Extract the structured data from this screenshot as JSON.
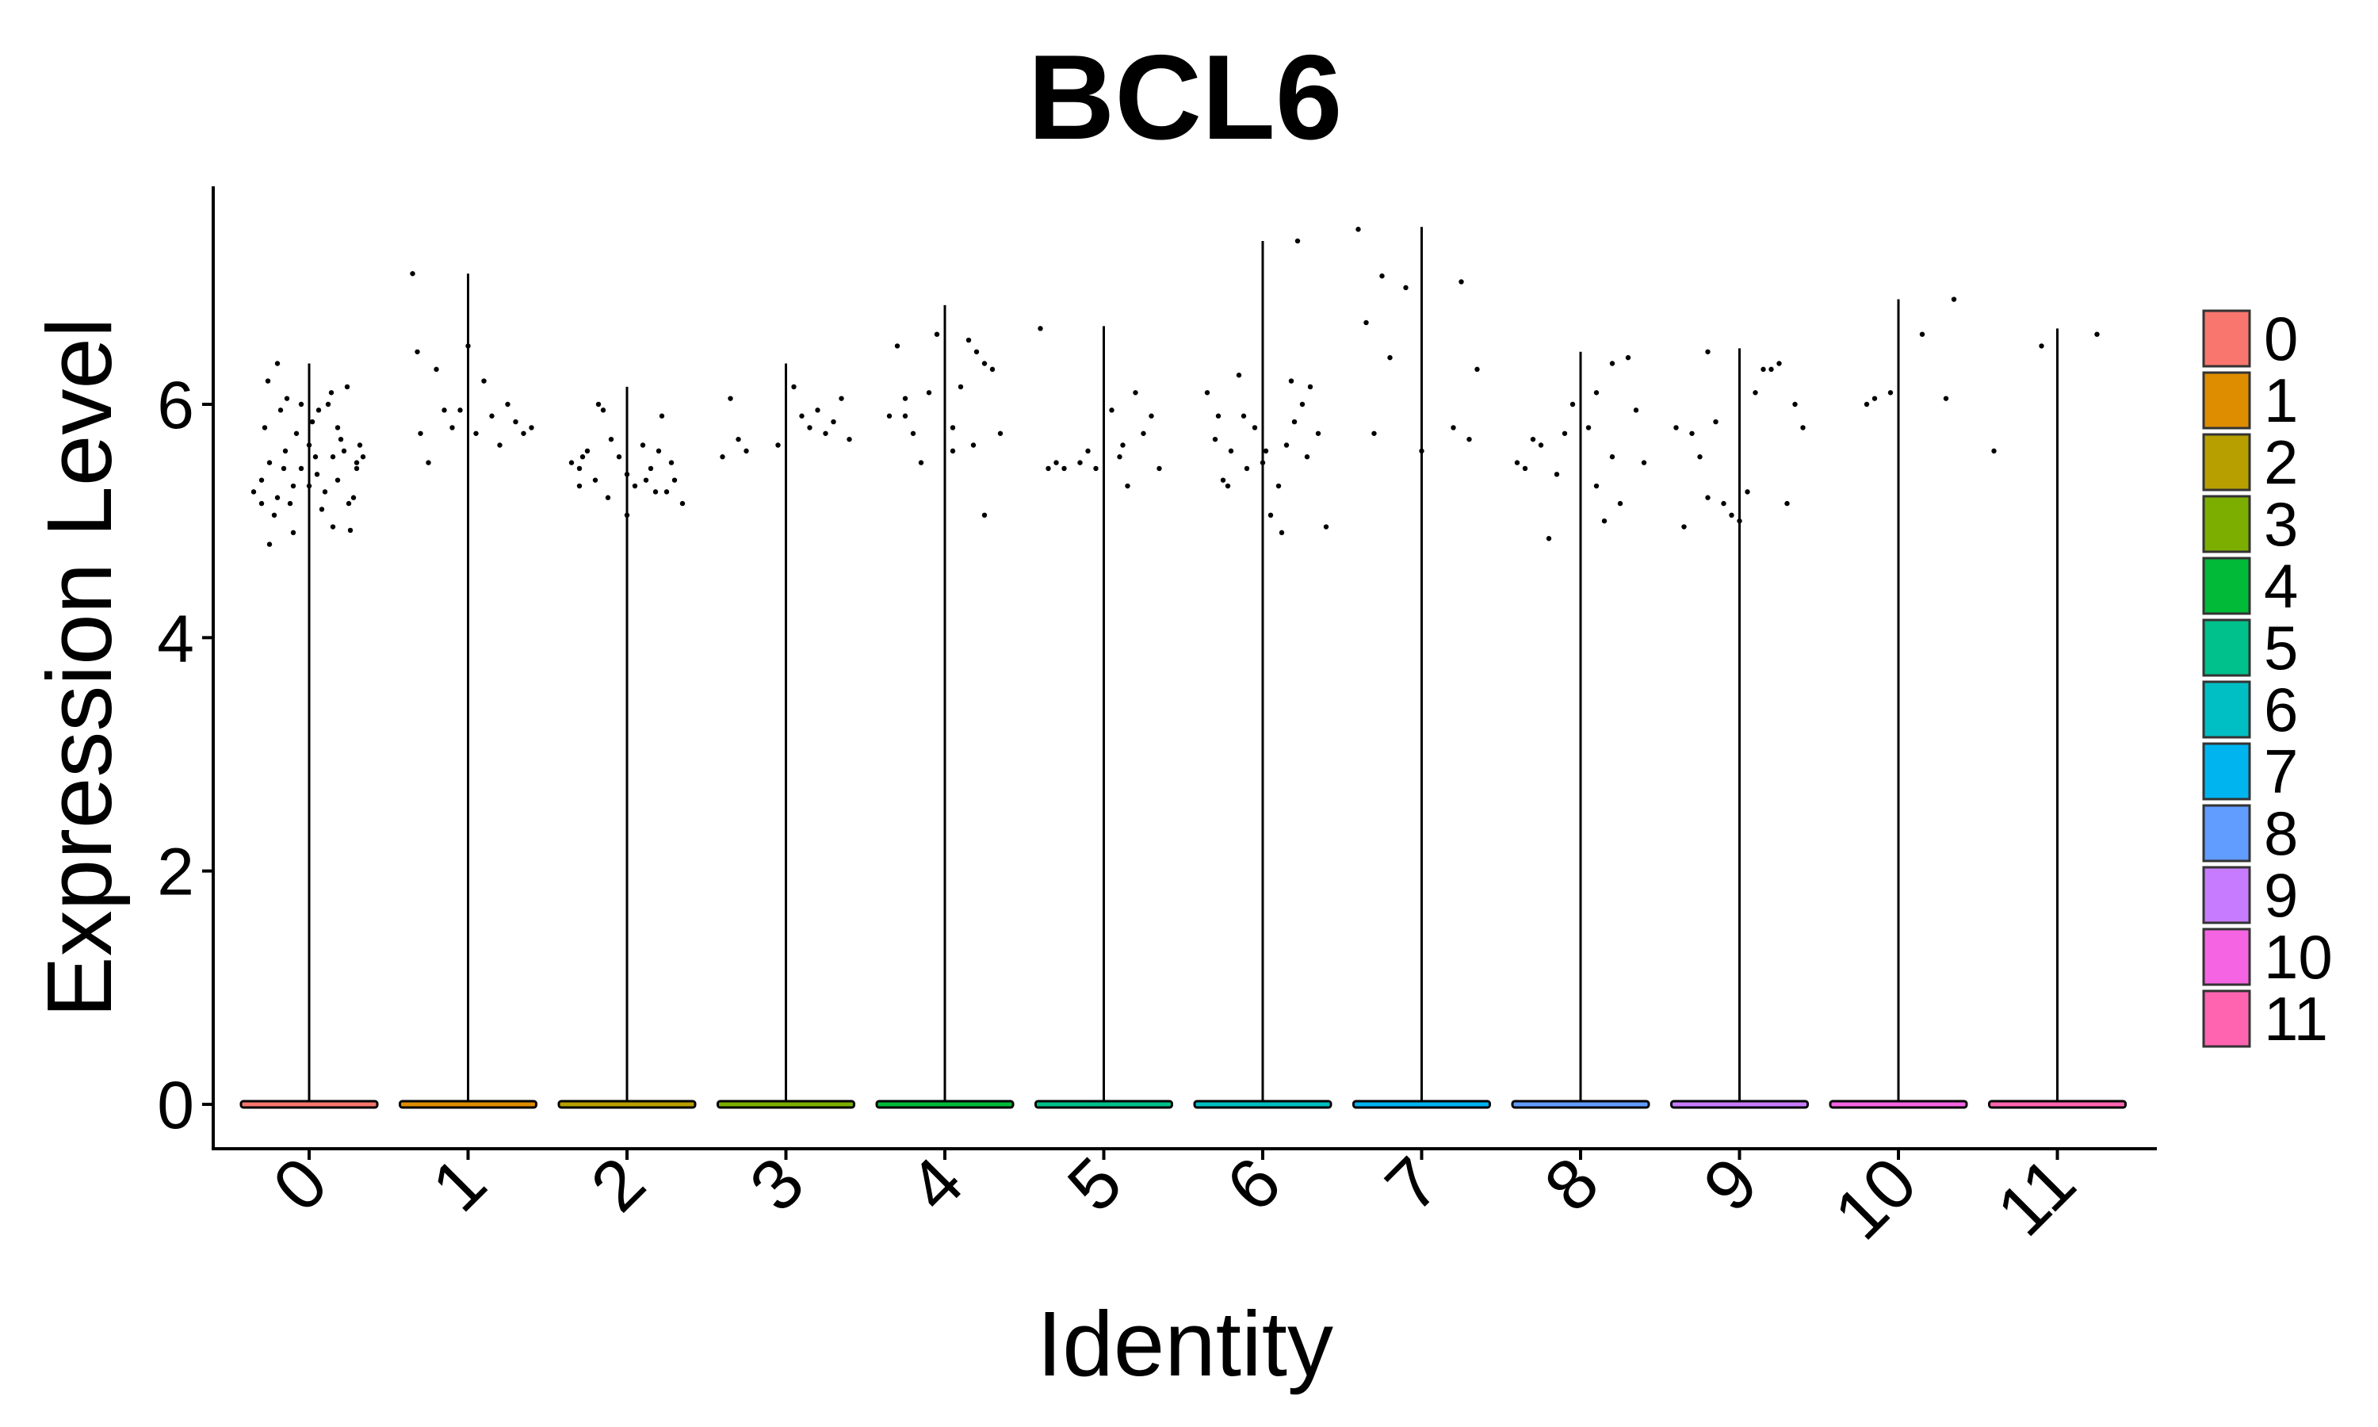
{
  "chart_data": {
    "type": "violin",
    "title": "BCL6",
    "xlabel": "Identity",
    "ylabel": "Expression Level",
    "categories": [
      "0",
      "1",
      "2",
      "3",
      "4",
      "5",
      "6",
      "7",
      "8",
      "9",
      "10",
      "11"
    ],
    "yticks": [
      "0",
      "2",
      "4",
      "6"
    ],
    "ylim": [
      -0.35,
      7.9
    ],
    "grid": false,
    "legend_position": "right",
    "legend": [
      {
        "label": "0",
        "color": "#F8766D"
      },
      {
        "label": "1",
        "color": "#DE8C00"
      },
      {
        "label": "2",
        "color": "#B79F00"
      },
      {
        "label": "3",
        "color": "#7CAE00"
      },
      {
        "label": "4",
        "color": "#00BA38"
      },
      {
        "label": "5",
        "color": "#00C08B"
      },
      {
        "label": "6",
        "color": "#00BFC4"
      },
      {
        "label": "7",
        "color": "#00B4F0"
      },
      {
        "label": "8",
        "color": "#619CFF"
      },
      {
        "label": "9",
        "color": "#C77CFF"
      },
      {
        "label": "10",
        "color": "#F564E3"
      },
      {
        "label": "11",
        "color": "#FF64B0"
      }
    ],
    "violin_max": [
      6.35,
      7.12,
      6.15,
      6.35,
      6.85,
      6.67,
      7.4,
      7.52,
      6.45,
      6.48,
      6.9,
      6.65
    ],
    "points": [
      [
        [
          -0.3,
          5.35
        ],
        [
          -0.25,
          5.5
        ],
        [
          -0.2,
          5.2
        ],
        [
          -0.15,
          5.6
        ],
        [
          -0.1,
          5.3
        ],
        [
          -0.05,
          5.45
        ],
        [
          0.0,
          5.65
        ],
        [
          0.05,
          5.4
        ],
        [
          0.1,
          5.25
        ],
        [
          0.15,
          5.55
        ],
        [
          0.2,
          5.7
        ],
        [
          0.25,
          5.15
        ],
        [
          0.3,
          5.5
        ],
        [
          -0.28,
          5.8
        ],
        [
          -0.22,
          5.05
        ],
        [
          -0.18,
          5.95
        ],
        [
          -0.12,
          5.15
        ],
        [
          -0.08,
          5.75
        ],
        [
          0.02,
          5.85
        ],
        [
          0.08,
          5.1
        ],
        [
          0.12,
          6.0
        ],
        [
          0.18,
          5.35
        ],
        [
          0.22,
          5.6
        ],
        [
          0.28,
          5.2
        ],
        [
          -0.35,
          5.25
        ],
        [
          0.32,
          5.65
        ],
        [
          -0.26,
          6.2
        ],
        [
          -0.14,
          6.05
        ],
        [
          0.14,
          6.1
        ],
        [
          0.24,
          6.15
        ],
        [
          -0.05,
          6.0
        ],
        [
          0.06,
          5.95
        ],
        [
          -0.3,
          5.15
        ],
        [
          0.3,
          5.45
        ],
        [
          0.0,
          5.3
        ],
        [
          -0.2,
          6.35
        ],
        [
          0.15,
          4.95
        ],
        [
          -0.1,
          4.9
        ],
        [
          -0.25,
          4.8
        ],
        [
          0.26,
          4.92
        ],
        [
          -0.16,
          5.45
        ],
        [
          0.04,
          5.55
        ],
        [
          0.18,
          5.8
        ],
        [
          0.34,
          5.55
        ]
      ],
      [
        [
          -0.35,
          7.12
        ],
        [
          -0.3,
          5.75
        ],
        [
          -0.2,
          6.3
        ],
        [
          -0.15,
          5.95
        ],
        [
          -0.1,
          5.8
        ],
        [
          0.0,
          6.5
        ],
        [
          0.05,
          5.75
        ],
        [
          0.15,
          5.9
        ],
        [
          0.2,
          5.65
        ],
        [
          0.3,
          5.85
        ],
        [
          0.35,
          5.75
        ],
        [
          -0.25,
          5.5
        ],
        [
          0.1,
          6.2
        ],
        [
          -0.05,
          5.95
        ],
        [
          0.25,
          6.0
        ],
        [
          -0.32,
          6.45
        ],
        [
          0.4,
          5.8
        ]
      ],
      [
        [
          -0.35,
          5.5
        ],
        [
          -0.3,
          5.45
        ],
        [
          -0.25,
          5.6
        ],
        [
          -0.2,
          5.35
        ],
        [
          -0.15,
          5.95
        ],
        [
          -0.1,
          5.7
        ],
        [
          -0.05,
          5.55
        ],
        [
          0.0,
          5.4
        ],
        [
          0.05,
          5.3
        ],
        [
          0.1,
          5.65
        ],
        [
          0.15,
          5.45
        ],
        [
          0.2,
          5.6
        ],
        [
          0.25,
          5.25
        ],
        [
          0.3,
          5.35
        ],
        [
          -0.28,
          5.55
        ],
        [
          -0.12,
          5.2
        ],
        [
          0.12,
          5.35
        ],
        [
          0.28,
          5.5
        ],
        [
          -0.18,
          6.0
        ],
        [
          0.22,
          5.9
        ],
        [
          -0.3,
          5.3
        ],
        [
          0.0,
          5.05
        ],
        [
          0.35,
          5.15
        ],
        [
          0.18,
          5.25
        ]
      ],
      [
        [
          -0.4,
          5.55
        ],
        [
          -0.35,
          6.05
        ],
        [
          -0.3,
          5.7
        ],
        [
          -0.25,
          5.6
        ],
        [
          0.05,
          6.15
        ],
        [
          0.1,
          5.9
        ],
        [
          0.15,
          5.8
        ],
        [
          0.2,
          5.95
        ],
        [
          0.25,
          5.75
        ],
        [
          0.3,
          5.85
        ],
        [
          0.35,
          6.05
        ],
        [
          0.4,
          5.7
        ],
        [
          -0.05,
          5.65
        ]
      ],
      [
        [
          -0.3,
          6.5
        ],
        [
          -0.25,
          5.9
        ],
        [
          -0.2,
          5.75
        ],
        [
          -0.15,
          5.5
        ],
        [
          -0.1,
          6.1
        ],
        [
          -0.05,
          6.6
        ],
        [
          0.05,
          5.8
        ],
        [
          0.1,
          6.15
        ],
        [
          0.15,
          6.55
        ],
        [
          0.2,
          6.45
        ],
        [
          0.25,
          6.35
        ],
        [
          0.3,
          6.3
        ],
        [
          0.35,
          5.75
        ],
        [
          0.05,
          5.6
        ],
        [
          -0.25,
          6.05
        ],
        [
          0.25,
          5.05
        ],
        [
          -0.35,
          5.9
        ],
        [
          0.18,
          5.65
        ]
      ],
      [
        [
          -0.4,
          6.65
        ],
        [
          -0.35,
          5.45
        ],
        [
          -0.3,
          5.5
        ],
        [
          -0.25,
          5.45
        ],
        [
          -0.15,
          5.5
        ],
        [
          -0.1,
          5.6
        ],
        [
          0.05,
          5.95
        ],
        [
          0.1,
          5.55
        ],
        [
          0.15,
          5.3
        ],
        [
          0.2,
          6.1
        ],
        [
          0.25,
          5.75
        ],
        [
          0.3,
          5.9
        ],
        [
          0.35,
          5.45
        ],
        [
          -0.05,
          5.45
        ],
        [
          0.12,
          5.65
        ]
      ],
      [
        [
          -0.35,
          6.1
        ],
        [
          -0.3,
          5.7
        ],
        [
          -0.25,
          5.35
        ],
        [
          -0.2,
          5.6
        ],
        [
          -0.15,
          6.25
        ],
        [
          -0.1,
          5.45
        ],
        [
          -0.05,
          5.8
        ],
        [
          0.0,
          5.5
        ],
        [
          0.05,
          5.05
        ],
        [
          0.1,
          5.3
        ],
        [
          0.15,
          5.65
        ],
        [
          0.2,
          5.85
        ],
        [
          0.25,
          6.0
        ],
        [
          0.3,
          6.15
        ],
        [
          0.35,
          5.75
        ],
        [
          0.4,
          4.95
        ],
        [
          -0.28,
          5.9
        ],
        [
          0.18,
          6.2
        ],
        [
          -0.12,
          5.9
        ],
        [
          0.12,
          4.9
        ],
        [
          0.28,
          5.55
        ],
        [
          0.22,
          7.4
        ],
        [
          -0.22,
          5.3
        ],
        [
          0.02,
          5.6
        ]
      ],
      [
        [
          -0.4,
          7.5
        ],
        [
          -0.35,
          6.7
        ],
        [
          -0.3,
          5.75
        ],
        [
          -0.25,
          7.1
        ],
        [
          -0.2,
          6.4
        ],
        [
          -0.1,
          7.0
        ],
        [
          0.0,
          5.6
        ],
        [
          0.2,
          5.8
        ],
        [
          0.3,
          5.7
        ],
        [
          0.35,
          6.3
        ],
        [
          0.25,
          7.05
        ]
      ],
      [
        [
          -0.4,
          5.5
        ],
        [
          -0.35,
          5.45
        ],
        [
          -0.3,
          5.7
        ],
        [
          -0.25,
          5.65
        ],
        [
          -0.2,
          4.85
        ],
        [
          -0.15,
          5.4
        ],
        [
          -0.1,
          5.75
        ],
        [
          -0.05,
          6.0
        ],
        [
          0.05,
          5.8
        ],
        [
          0.1,
          6.1
        ],
        [
          0.15,
          5.0
        ],
        [
          0.2,
          6.35
        ],
        [
          0.25,
          5.15
        ],
        [
          0.3,
          6.4
        ],
        [
          0.35,
          5.95
        ],
        [
          0.4,
          5.5
        ],
        [
          0.1,
          5.3
        ],
        [
          0.2,
          5.55
        ]
      ],
      [
        [
          -0.4,
          5.8
        ],
        [
          -0.35,
          4.95
        ],
        [
          -0.3,
          5.75
        ],
        [
          -0.25,
          5.55
        ],
        [
          -0.2,
          5.2
        ],
        [
          -0.15,
          5.85
        ],
        [
          -0.1,
          5.15
        ],
        [
          -0.05,
          5.05
        ],
        [
          0.0,
          5.0
        ],
        [
          0.05,
          5.25
        ],
        [
          0.1,
          6.1
        ],
        [
          0.15,
          6.3
        ],
        [
          0.2,
          6.3
        ],
        [
          0.25,
          6.35
        ],
        [
          0.3,
          5.15
        ],
        [
          0.35,
          6.0
        ],
        [
          0.4,
          5.8
        ],
        [
          -0.2,
          6.45
        ]
      ],
      [
        [
          -0.2,
          6.0
        ],
        [
          -0.15,
          6.05
        ],
        [
          -0.05,
          6.1
        ],
        [
          0.15,
          6.6
        ],
        [
          0.3,
          6.05
        ],
        [
          0.35,
          6.9
        ]
      ],
      [
        [
          -0.4,
          5.6
        ],
        [
          -0.1,
          6.5
        ],
        [
          0.25,
          6.6
        ]
      ]
    ]
  }
}
